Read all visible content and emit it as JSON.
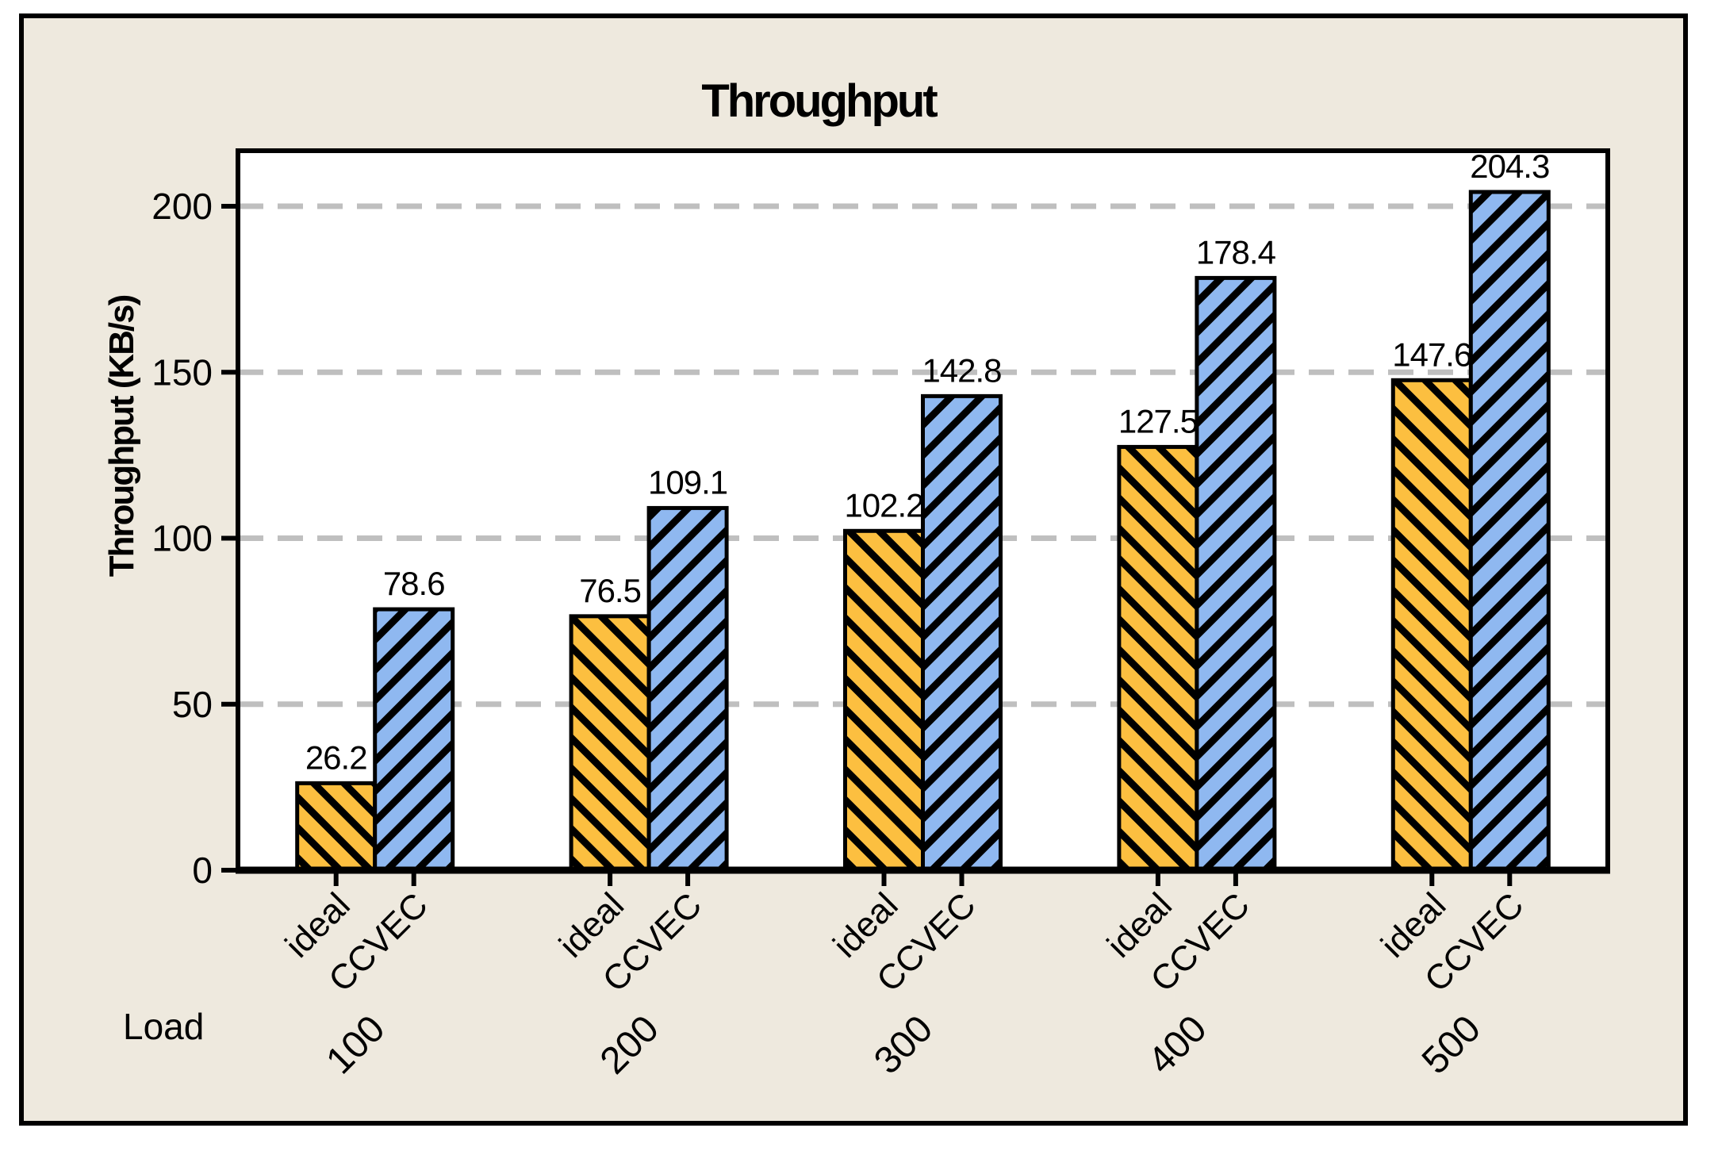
{
  "figure": {
    "background_color": "#EEE9DE",
    "outer_background_color": "#FFFFFF",
    "plot_background_color": "#FFFFFF",
    "border_color": "#000000",
    "gridline_color": "#BFBFBF"
  },
  "chart_data": {
    "type": "bar",
    "title": "Throughput",
    "xlabel": "Load",
    "ylabel": "Throughput (KB/s)",
    "categories": [
      "100",
      "200",
      "300",
      "400",
      "500"
    ],
    "series": [
      {
        "name": "ideal",
        "color": "#FCBF40",
        "hatch": "\\",
        "values": [
          26.2,
          76.5,
          102.2,
          127.5,
          147.6
        ]
      },
      {
        "name": "CCVEC",
        "color": "#8FB8F0",
        "hatch": "/",
        "values": [
          78.6,
          109.1,
          142.8,
          178.4,
          204.3
        ]
      }
    ],
    "value_labels": [
      "26.2",
      "78.6",
      "76.5",
      "109.1",
      "102.2",
      "142.8",
      "127.5",
      "178.4",
      "147.6",
      "204.3"
    ],
    "yticks": [
      0,
      50,
      100,
      150,
      200
    ],
    "ylim": [
      0,
      217
    ],
    "grid": "horizontal-dashed",
    "legend": "none",
    "bar_edge_color": "#000000",
    "tick_label_rotation_deg": 45
  }
}
